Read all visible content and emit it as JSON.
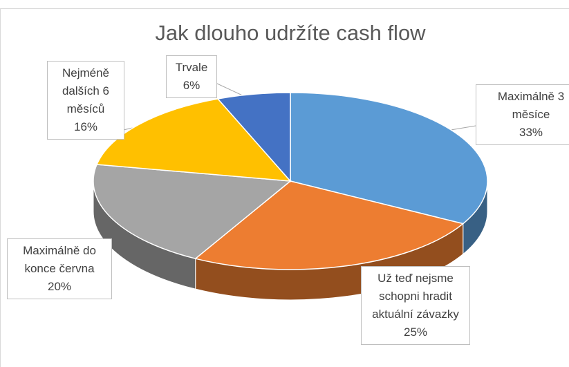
{
  "chart_data": {
    "type": "pie3d",
    "title": "Jak dlouho udržíte cash flow",
    "categories": [
      "Maximálně 3 měsíce",
      "Už teď nejsme schopni hradit aktuální závazky",
      "Maximálně do konce června",
      "Nejméně dalších 6 měsíců",
      "Trvale"
    ],
    "values": [
      33,
      25,
      20,
      16,
      6
    ],
    "value_labels": [
      "33%",
      "25%",
      "20%",
      "16%",
      "6%"
    ],
    "colors": [
      "#5b9bd5",
      "#ed7d31",
      "#a5a5a5",
      "#ffc000",
      "#4472c4"
    ]
  }
}
